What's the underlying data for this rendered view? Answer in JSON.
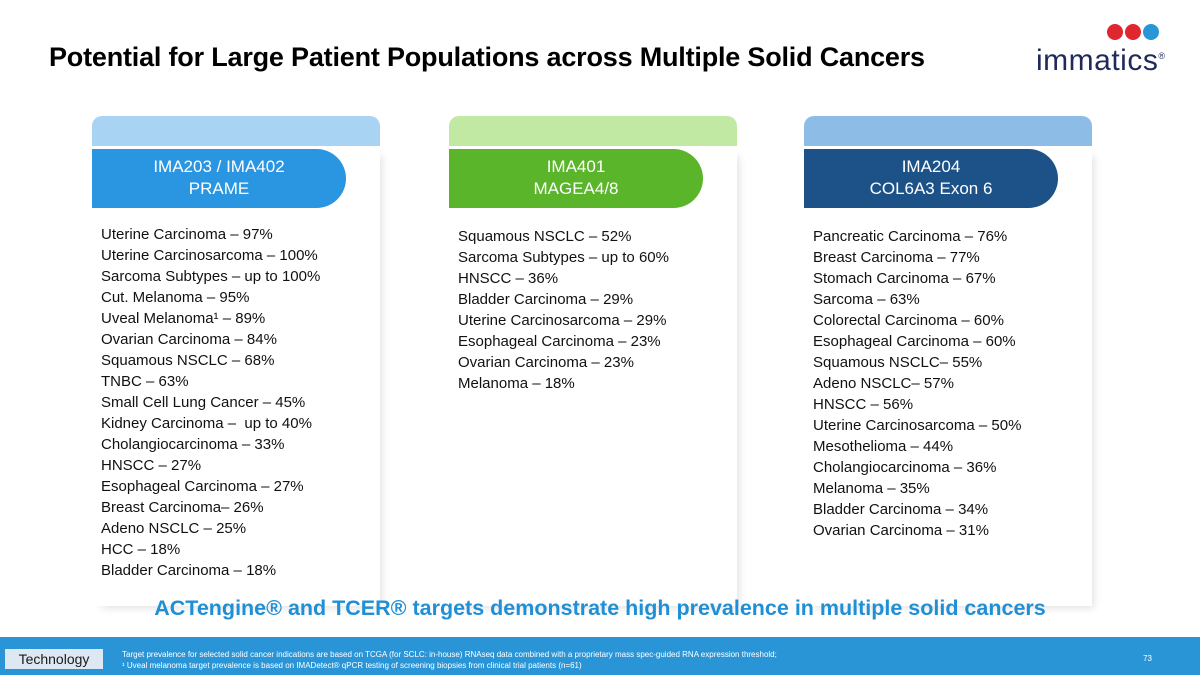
{
  "title": "Potential for Large Patient Populations across Multiple Solid Cancers",
  "logo": {
    "text": "immatics",
    "colors": [
      "#e0262e",
      "#e0262e",
      "#2a95d6"
    ]
  },
  "cards": [
    {
      "header_line1": "IMA203 / IMA402",
      "header_line2": "PRAME",
      "band_color": "#a9d3f2",
      "label_color": "#2a95e0",
      "items": [
        "Uterine Carcinoma – 97%",
        "Uterine Carcinosarcoma – 100%",
        "Sarcoma Subtypes – up to 100%",
        "Cut. Melanoma – 95%",
        "Uveal Melanoma¹ – 89%",
        "Ovarian Carcinoma – 84%",
        "Squamous NSCLC – 68%",
        "TNBC – 63%",
        "Small Cell Lung Cancer – 45%",
        "Kidney Carcinoma –  up to 40%",
        "Cholangiocarcinoma – 33%",
        "HNSCC – 27%",
        "Esophageal Carcinoma – 27%",
        "Breast Carcinoma– 26%",
        "Adeno NSCLC – 25%",
        "HCC – 18%",
        "Bladder Carcinoma – 18%"
      ]
    },
    {
      "header_line1": "IMA401",
      "header_line2": "MAGEA4/8",
      "band_color": "#c2e9a4",
      "label_color": "#5ab52a",
      "items": [
        "Squamous NSCLC – 52%",
        "Sarcoma Subtypes – up to 60%",
        "HNSCC – 36%",
        "Bladder Carcinoma – 29%",
        "Uterine Carcinosarcoma – 29%",
        "Esophageal Carcinoma – 23%",
        "Ovarian Carcinoma – 23%",
        "Melanoma – 18%"
      ]
    },
    {
      "header_line1": "IMA204",
      "header_line2": "COL6A3 Exon 6",
      "band_color": "#8dbde6",
      "label_color": "#1d5289",
      "items": [
        "Pancreatic Carcinoma – 76%",
        "Breast Carcinoma – 77%",
        "Stomach Carcinoma – 67%",
        "Sarcoma – 63%",
        "Colorectal Carcinoma – 60%",
        "Esophageal Carcinoma – 60%",
        "Squamous NSCLC– 55%",
        "Adeno NSCLC– 57%",
        "HNSCC – 56%",
        "Uterine Carcinosarcoma – 50%",
        "Mesothelioma – 44%",
        "Cholangiocarcinoma – 36%",
        "Melanoma – 35%",
        "Bladder Carcinoma – 34%",
        "Ovarian Carcinoma – 31%"
      ]
    }
  ],
  "tagline": "ACTengine® and TCER® targets demonstrate high prevalence in multiple solid cancers",
  "footer": {
    "section": "Technology",
    "note1": "Target prevalence for selected solid cancer indications are based on TCGA (for SCLC: in-house) RNAseq data combined with a proprietary mass spec-guided RNA expression threshold;",
    "note2": "¹ Uveal melanoma target prevalence is based on IMADetect® qPCR testing of screening biopsies from clinical trial patients (n=61)",
    "page": "73"
  }
}
